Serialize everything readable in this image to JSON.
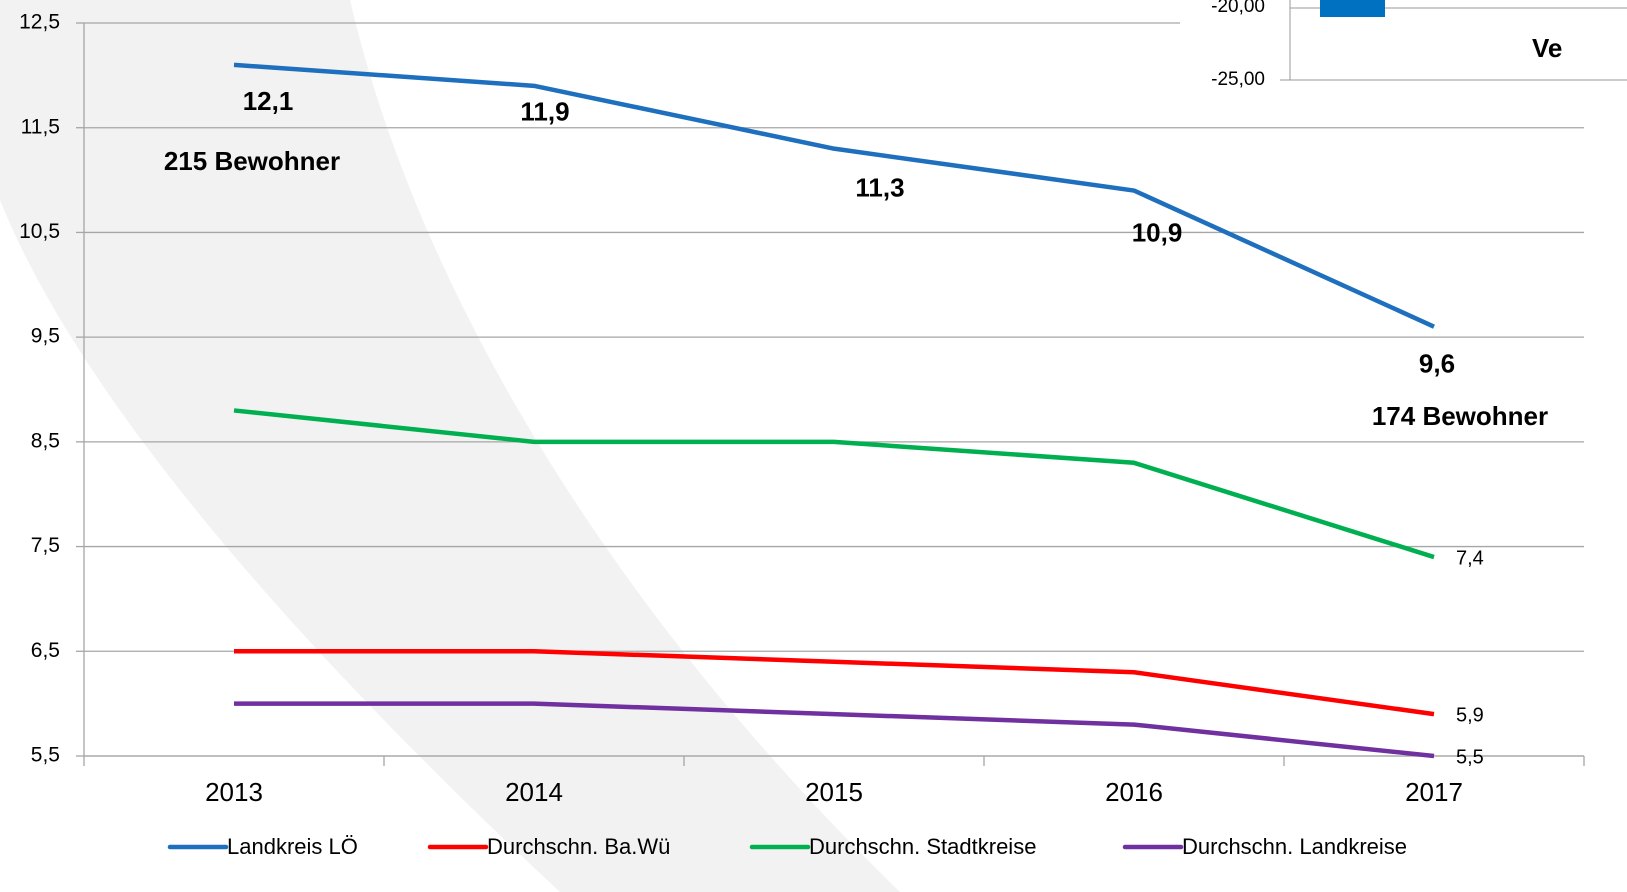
{
  "chart_data": {
    "type": "line",
    "categories": [
      "2013",
      "2014",
      "2015",
      "2016",
      "2017"
    ],
    "series": [
      {
        "name": "Landkreis LÖ",
        "color": "#1f6fbf",
        "values": [
          12.1,
          11.9,
          11.3,
          10.9,
          9.6
        ],
        "value_labels": [
          "12,1",
          "11,9",
          "11,3",
          "10,9",
          "9,6"
        ]
      },
      {
        "name": "Durchschn. Ba.Wü",
        "color": "#ff0000",
        "values": [
          6.5,
          6.5,
          6.4,
          6.3,
          5.9
        ],
        "value_labels": [
          null,
          null,
          null,
          null,
          "5,9"
        ]
      },
      {
        "name": "Durchschn. Stadtkreise",
        "color": "#00b050",
        "values": [
          8.8,
          8.5,
          8.5,
          8.3,
          7.4
        ],
        "value_labels": [
          null,
          null,
          null,
          null,
          "7,4"
        ]
      },
      {
        "name": "Durchschn. Landkreise",
        "color": "#7030a0",
        "values": [
          6.0,
          6.0,
          5.9,
          5.8,
          5.5
        ],
        "value_labels": [
          null,
          null,
          null,
          null,
          "5,5"
        ]
      }
    ],
    "ylim": [
      5.5,
      12.5
    ],
    "yticks": [
      {
        "value": 5.5,
        "label": "5,5"
      },
      {
        "value": 6.5,
        "label": "6,5"
      },
      {
        "value": 7.5,
        "label": "7,5"
      },
      {
        "value": 8.5,
        "label": "8,5"
      },
      {
        "value": 9.5,
        "label": "9,5"
      },
      {
        "value": 10.5,
        "label": "10,5"
      },
      {
        "value": 11.5,
        "label": "11,5"
      },
      {
        "value": 12.5,
        "label": "12,5"
      }
    ],
    "grid": true,
    "legend": "bottom",
    "annotations": [
      "215 Bewohner",
      "174 Bewohner"
    ],
    "inset": {
      "yticks": [
        "-20,00",
        "-25,00"
      ],
      "title": "Ve"
    }
  }
}
